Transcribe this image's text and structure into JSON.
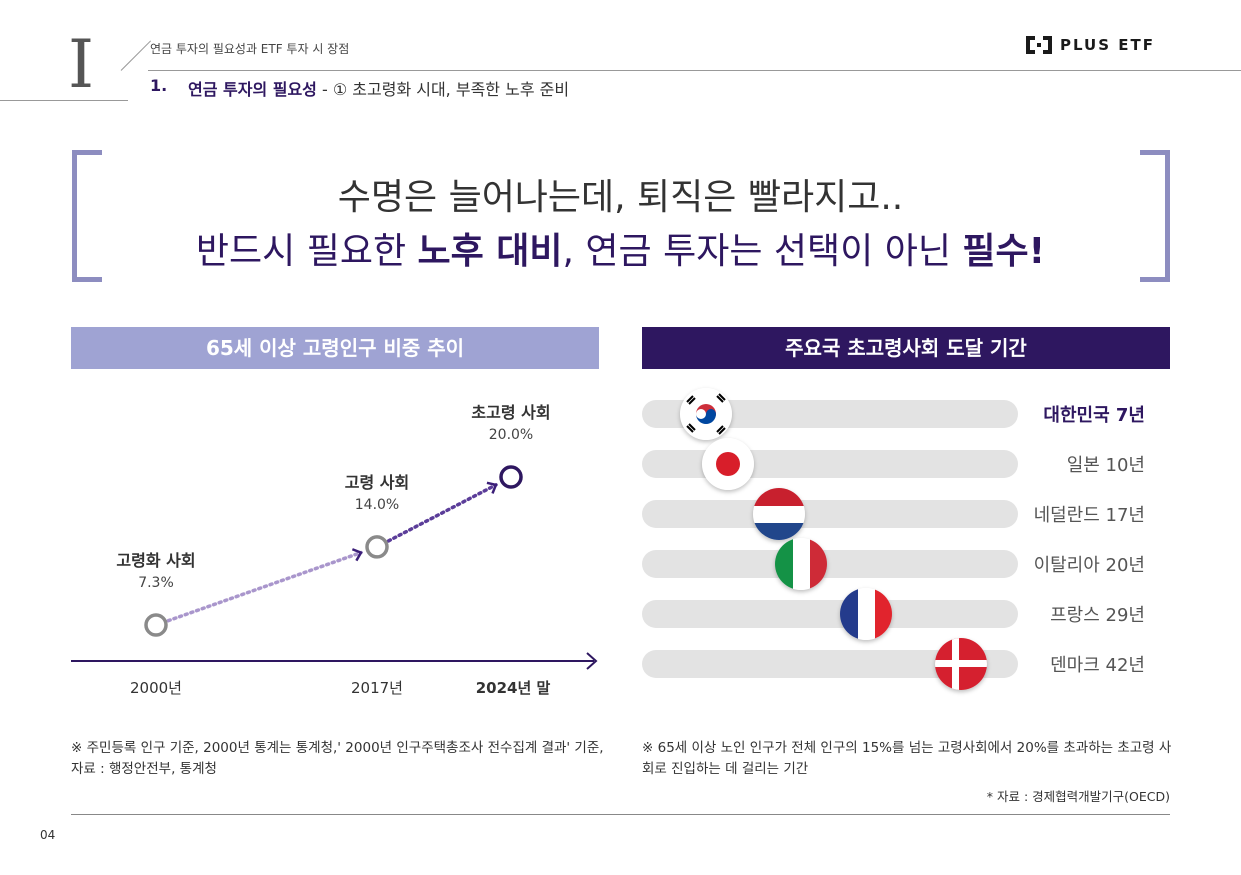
{
  "header": {
    "roman_numeral": "I",
    "breadcrumb": "연금 투자의 필요성과 ETF 투자 시 장점",
    "section_number": "1.",
    "section_title_bold": "연금 투자의 필요성",
    "section_title_rest": " - ① 초고령화 시대, 부족한 노후 준비",
    "logo_text": "PLUS ETF"
  },
  "headline": {
    "line1": "수명은 늘어나는데, 퇴직은 빨라지고..",
    "line2_a": "반드시 필요한 ",
    "line2_b": "노후 대비",
    "line2_c": ", 연금 투자는 선택이 아닌 ",
    "line2_d": "필수!"
  },
  "left_panel": {
    "title": "65세 이상 고령인구 비중 추이",
    "note": "※ 주민등록 인구 기준, 2000년 통계는 통계청,' 2000년 인구주택총조사 전수집계 결과' 기준, 자료 : 행정안전부, 통계청"
  },
  "right_panel": {
    "title": "주요국 초고령사회 도달 기간",
    "note": "※ 65세 이상 노인 인구가 전체 인구의 15%를 넘는 고령사회에서 20%를 초과하는 초고령 사회로 진입하는 데 걸리는 기간",
    "source": "* 자료 : 경제협력개발기구(OECD)"
  },
  "chart_data": [
    {
      "type": "line",
      "title": "65세 이상 고령인구 비중 추이",
      "x": [
        "2000년",
        "2017년",
        "2024년 말"
      ],
      "series": [
        {
          "values": [
            7.3,
            14.0,
            20.0
          ],
          "value_labels": [
            "7.3%",
            "14.0%",
            "20.0%"
          ]
        }
      ],
      "point_labels": [
        "고령화 사회",
        "고령 사회",
        "초고령 사회"
      ],
      "colors": {
        "start": "#cfc6e0",
        "end": "#3b1e78",
        "axis": "#2e1760"
      }
    },
    {
      "type": "bar",
      "orientation": "horizontal",
      "title": "주요국 초고령사회 도달 기간",
      "categories": [
        "대한민국",
        "일본",
        "네덜란드",
        "이탈리아",
        "프랑스",
        "덴마크"
      ],
      "values": [
        7,
        10,
        17,
        20,
        29,
        42
      ],
      "labels": [
        "대한민국 7년",
        "일본 10년",
        "네덜란드 17년",
        "이탈리아 20년",
        "프랑스 29년",
        "덴마크 42년"
      ],
      "highlight": "대한민국",
      "flags": [
        "korea-flag-icon",
        "japan-flag-icon",
        "netherlands-flag-icon",
        "italy-flag-icon",
        "france-flag-icon",
        "denmark-flag-icon"
      ]
    }
  ],
  "page_number": "04"
}
